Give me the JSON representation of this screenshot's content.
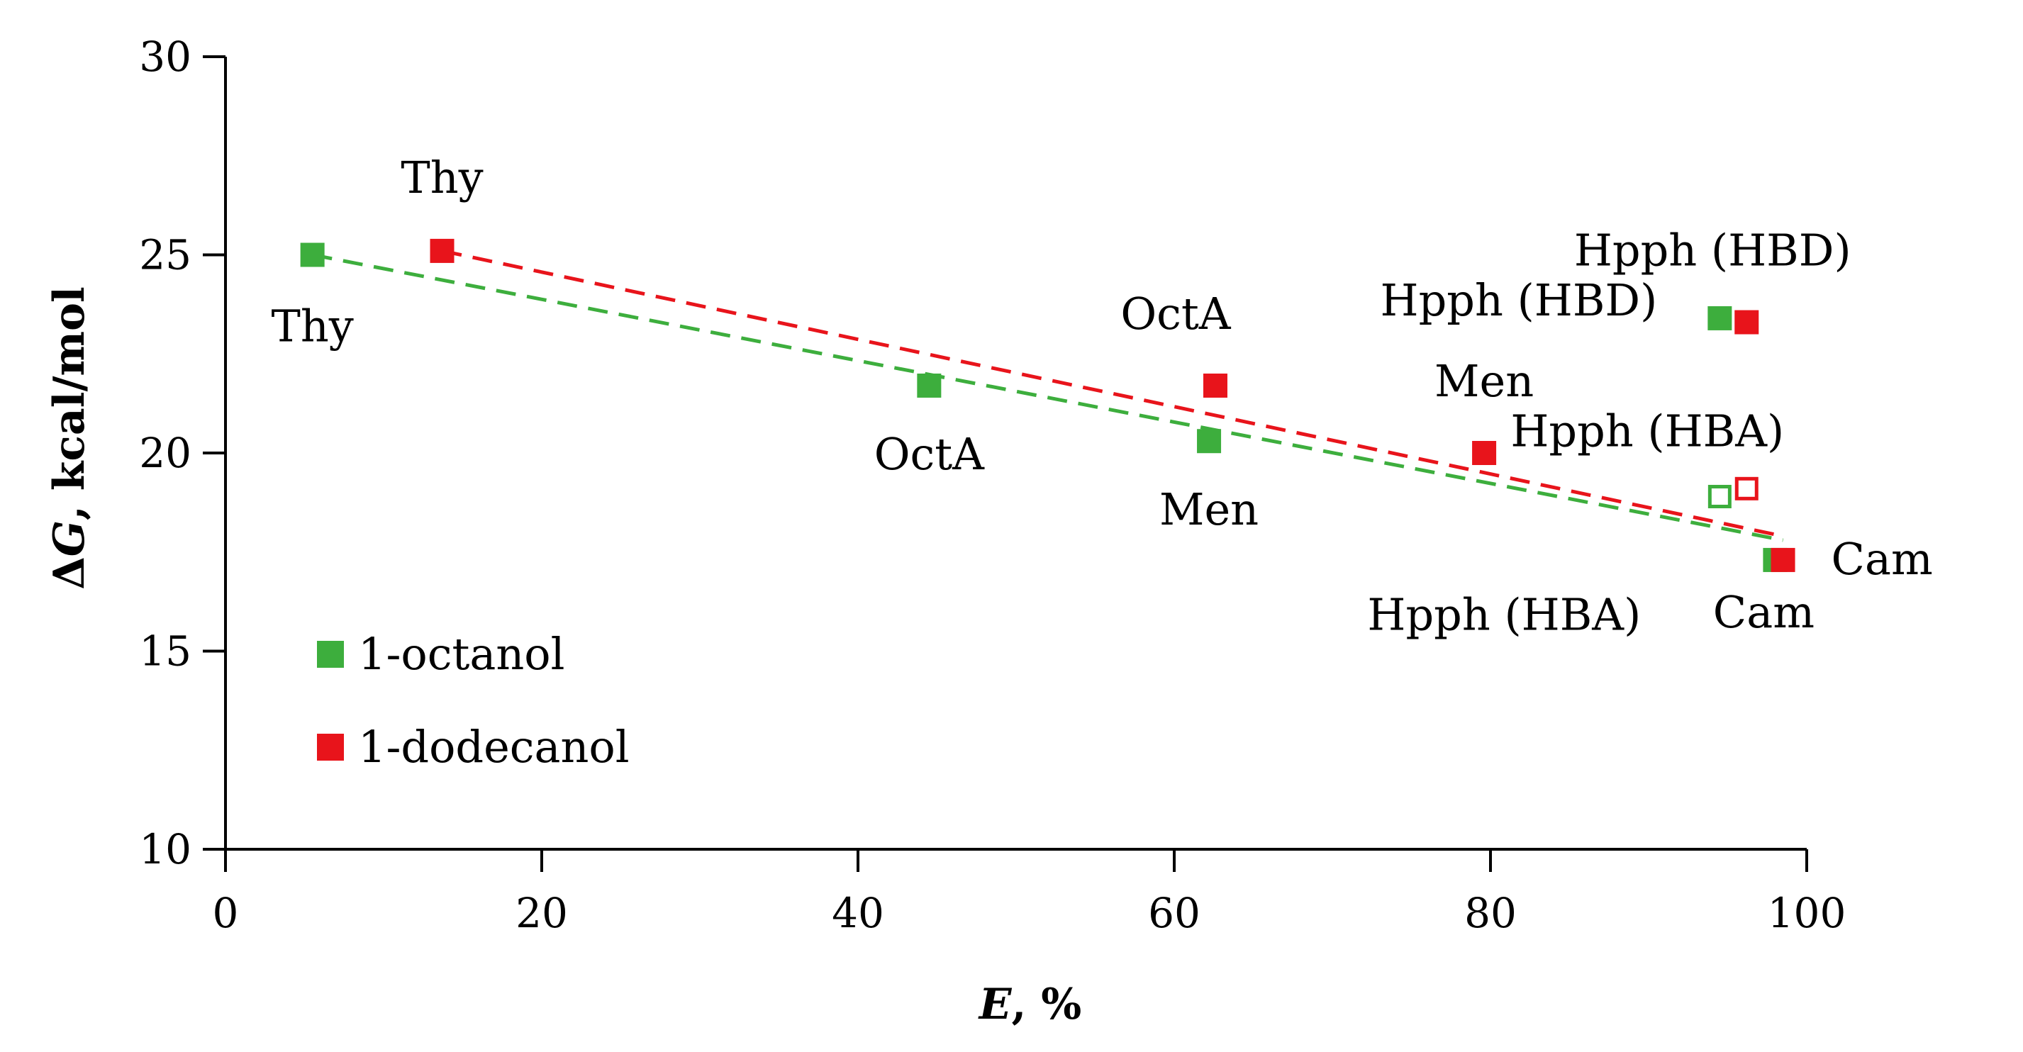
{
  "chart_data": {
    "type": "scatter",
    "title": "",
    "xlabel_var": "E",
    "xlabel_unit": ", %",
    "ylabel_var": "G",
    "ylabel_prefix": "Δ",
    "ylabel_unit": ", kcal/mol",
    "xlim": [
      0,
      100
    ],
    "ylim": [
      10,
      30
    ],
    "x_ticks": [
      0,
      20,
      40,
      60,
      80,
      100
    ],
    "y_ticks": [
      10,
      15,
      20,
      25,
      30
    ],
    "grid": false,
    "legend_position": "bottom-left",
    "series": [
      {
        "name": "1-octanol",
        "color": "#3dae3d",
        "marker": "square",
        "points": [
          {
            "x": 5.5,
            "y": 25.0,
            "label": "Thy",
            "filled": true
          },
          {
            "x": 44.5,
            "y": 21.7,
            "label": "OctA",
            "filled": true
          },
          {
            "x": 62.2,
            "y": 20.3,
            "label": "Men",
            "filled": true
          },
          {
            "x": 94.5,
            "y": 23.4,
            "label": "Hpph (HBD)",
            "filled": true
          },
          {
            "x": 94.5,
            "y": 18.9,
            "label": "Hpph (HBA)",
            "filled": false
          },
          {
            "x": 98.0,
            "y": 17.3,
            "label": "Cam",
            "filled": true
          }
        ],
        "trendline": {
          "style": "dashed",
          "from": [
            5.5,
            25.0
          ],
          "to": [
            98.5,
            17.8
          ]
        }
      },
      {
        "name": "1-dodecanol",
        "color": "#e8141b",
        "marker": "square",
        "points": [
          {
            "x": 13.7,
            "y": 25.1,
            "label": "Thy",
            "filled": true
          },
          {
            "x": 62.6,
            "y": 21.7,
            "label": "OctA",
            "filled": true
          },
          {
            "x": 79.6,
            "y": 20.0,
            "label": "Men",
            "filled": true
          },
          {
            "x": 96.2,
            "y": 23.3,
            "label": "Hpph (HBD)",
            "filled": true
          },
          {
            "x": 96.2,
            "y": 19.1,
            "label": "Hpph (HBA)",
            "filled": false
          },
          {
            "x": 98.5,
            "y": 17.3,
            "label": "Cam",
            "filled": true
          }
        ],
        "trendline": {
          "style": "dashed",
          "from": [
            13.7,
            25.1
          ],
          "to": [
            98.5,
            17.9
          ]
        }
      }
    ]
  }
}
